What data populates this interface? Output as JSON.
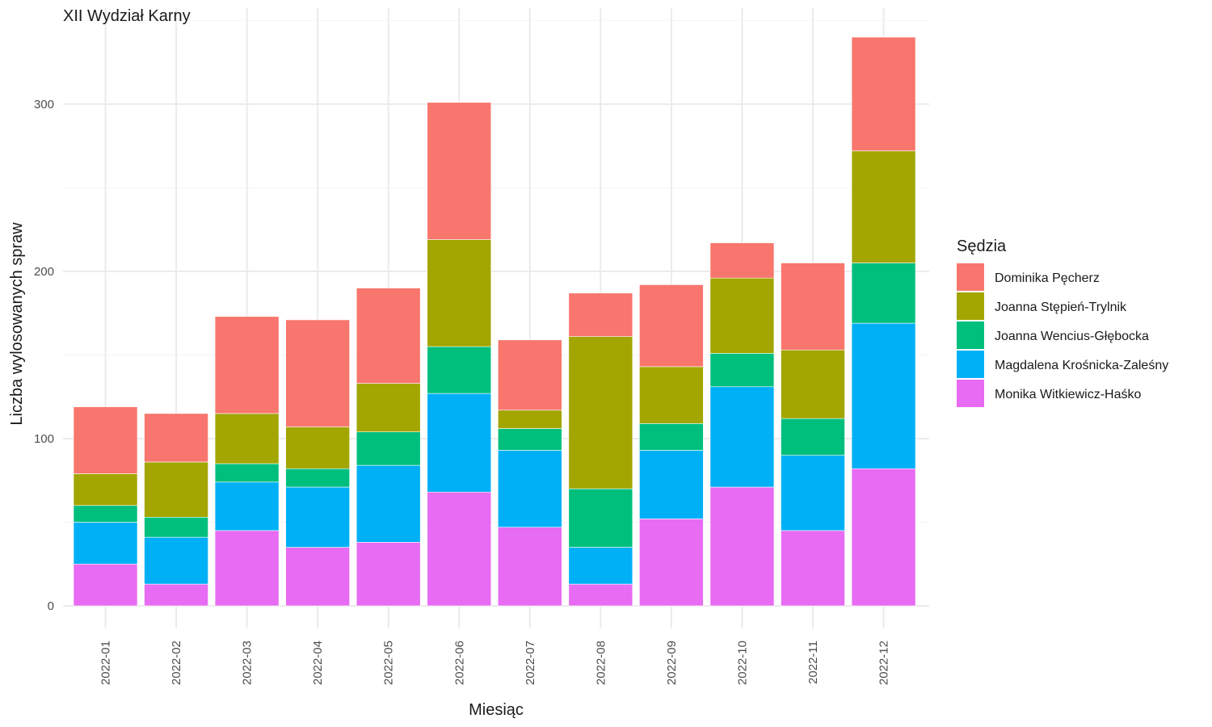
{
  "chart_data": {
    "type": "bar",
    "stacked": true,
    "title": "XII Wydział Karny",
    "xlabel": "Miesiąc",
    "ylabel": "Liczba wylosowanych spraw",
    "ylim": [
      0,
      345
    ],
    "yticks": [
      0,
      100,
      200,
      300
    ],
    "grid": true,
    "legend_title": "Sędzia",
    "legend_position": "right",
    "categories": [
      "2022-01",
      "2022-02",
      "2022-03",
      "2022-04",
      "2022-05",
      "2022-06",
      "2022-07",
      "2022-08",
      "2022-09",
      "2022-10",
      "2022-11",
      "2022-12"
    ],
    "series": [
      {
        "name": "Dominika Pęcherz",
        "color": "#F8766D",
        "values": [
          40,
          29,
          58,
          64,
          57,
          82,
          42,
          26,
          49,
          21,
          52,
          68
        ]
      },
      {
        "name": "Joanna Stępień-Trylnik",
        "color": "#A3A500",
        "values": [
          19,
          33,
          30,
          25,
          29,
          64,
          11,
          91,
          34,
          45,
          41,
          67
        ]
      },
      {
        "name": "Joanna Wencius-Głębocka",
        "color": "#00BF7D",
        "values": [
          10,
          12,
          11,
          11,
          20,
          28,
          13,
          35,
          16,
          20,
          22,
          36
        ]
      },
      {
        "name": "Magdalena Krośnicka-Zaleśny",
        "color": "#00B0F6",
        "values": [
          25,
          28,
          29,
          36,
          46,
          59,
          46,
          22,
          41,
          60,
          45,
          87
        ]
      },
      {
        "name": "Monika Witkiewicz-Haśko",
        "color": "#E76BF3",
        "values": [
          25,
          13,
          45,
          35,
          38,
          68,
          47,
          13,
          52,
          71,
          45,
          82
        ]
      }
    ]
  }
}
